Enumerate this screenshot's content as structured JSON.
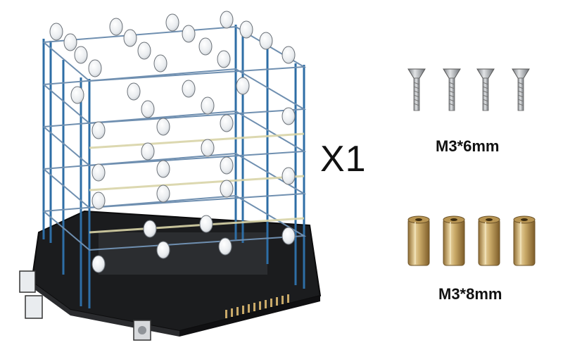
{
  "product": {
    "quantity_label": "X1",
    "cube_image": "led-cube-kit-icon"
  },
  "parts": [
    {
      "name": "screw",
      "count": 4,
      "label": "M3*6mm",
      "icon": "countersunk-screw-icon"
    },
    {
      "name": "standoff",
      "count": 4,
      "label": "M3*8mm",
      "icon": "brass-standoff-icon"
    }
  ],
  "colors": {
    "pillar": "#2e6ea6",
    "board": "#1b1c1e",
    "led": "#e9ecef",
    "brass": "#c9a968",
    "steel": "#a9acb0"
  }
}
